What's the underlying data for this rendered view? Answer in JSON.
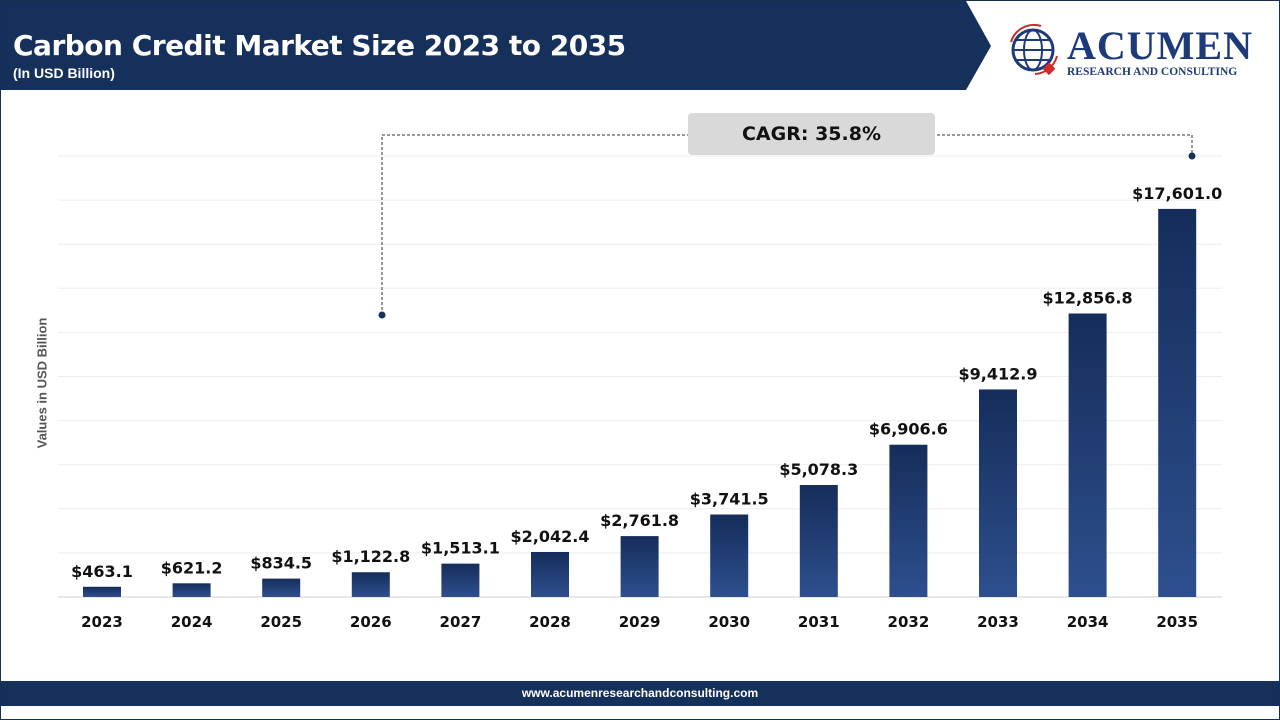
{
  "header": {
    "title": "Carbon Credit Market Size 2023 to 2035",
    "subtitle": "(In USD Billion)"
  },
  "logo": {
    "main": "ACUMEN",
    "sub": "RESEARCH AND CONSULTING"
  },
  "footer": {
    "url": "www.acumenresearchandconsulting.com"
  },
  "cagr": "CAGR: 35.8%",
  "colors": {
    "bar_top": "#152d5a",
    "bar_bottom": "#2e4f8e",
    "header": "#15305a"
  },
  "chart_data": {
    "type": "bar",
    "title": "Carbon Credit Market Size 2023 to 2035",
    "subtitle": "(In USD Billion)",
    "ylabel": "Values in USD Billion",
    "xlabel": "",
    "ylim": [
      0,
      20000
    ],
    "grid": true,
    "categories": [
      "2023",
      "2024",
      "2025",
      "2026",
      "2027",
      "2028",
      "2029",
      "2030",
      "2031",
      "2032",
      "2033",
      "2034",
      "2035"
    ],
    "values": [
      463.1,
      621.2,
      834.5,
      1122.8,
      1513.1,
      2042.4,
      2761.8,
      3741.5,
      5078.3,
      6906.6,
      9412.9,
      12856.8,
      17601.0
    ],
    "data_labels": [
      "$463.1",
      "$621.2",
      "$834.5",
      "$1,122.8",
      "$1,513.1",
      "$2,042.4",
      "$2,761.8",
      "$3,741.5",
      "$5,078.3",
      "$6,906.6",
      "$9,412.9",
      "$12,856.8",
      "$17,601.0"
    ],
    "annotation": "CAGR: 35.8%"
  }
}
